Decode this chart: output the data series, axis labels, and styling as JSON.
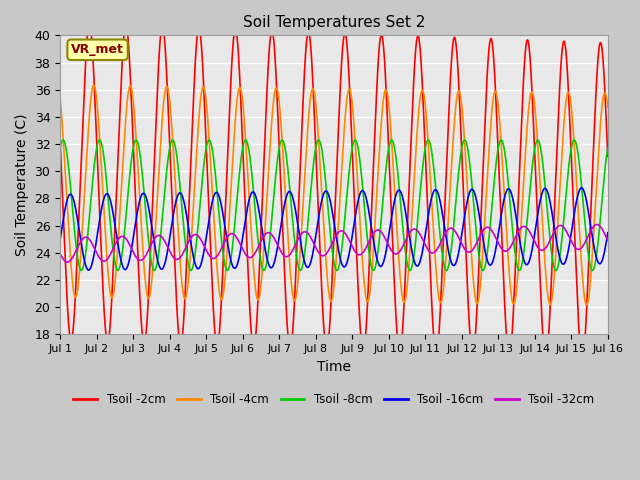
{
  "title": "Soil Temperatures Set 2",
  "xlabel": "Time",
  "ylabel": "Soil Temperature (C)",
  "ylim": [
    18,
    40
  ],
  "yticks": [
    18,
    20,
    22,
    24,
    26,
    28,
    30,
    32,
    34,
    36,
    38,
    40
  ],
  "xtick_labels": [
    "Jul 1",
    "Jul 2",
    "Jul 3",
    "Jul 4",
    "Jul 5",
    "Jul 6",
    "Jul 7",
    "Jul 8",
    "Jul 9",
    "Jul 10",
    "Jul 11",
    "Jul 12",
    "Jul 13",
    "Jul 14",
    "Jul 15",
    "Jul 16"
  ],
  "xlim": [
    0,
    15
  ],
  "figure_bg": "#c8c8c8",
  "plot_bg_color": "#e8e8e8",
  "grid_color": "#ffffff",
  "colors": {
    "2cm": "#ff0000",
    "4cm": "#ff8800",
    "8cm": "#00cc00",
    "16cm": "#0000ee",
    "32cm": "#cc00cc"
  },
  "legend_labels": [
    "Tsoil -2cm",
    "Tsoil -4cm",
    "Tsoil -8cm",
    "Tsoil -16cm",
    "Tsoil -32cm"
  ],
  "annotation_text": "VR_met",
  "lw": 1.2
}
